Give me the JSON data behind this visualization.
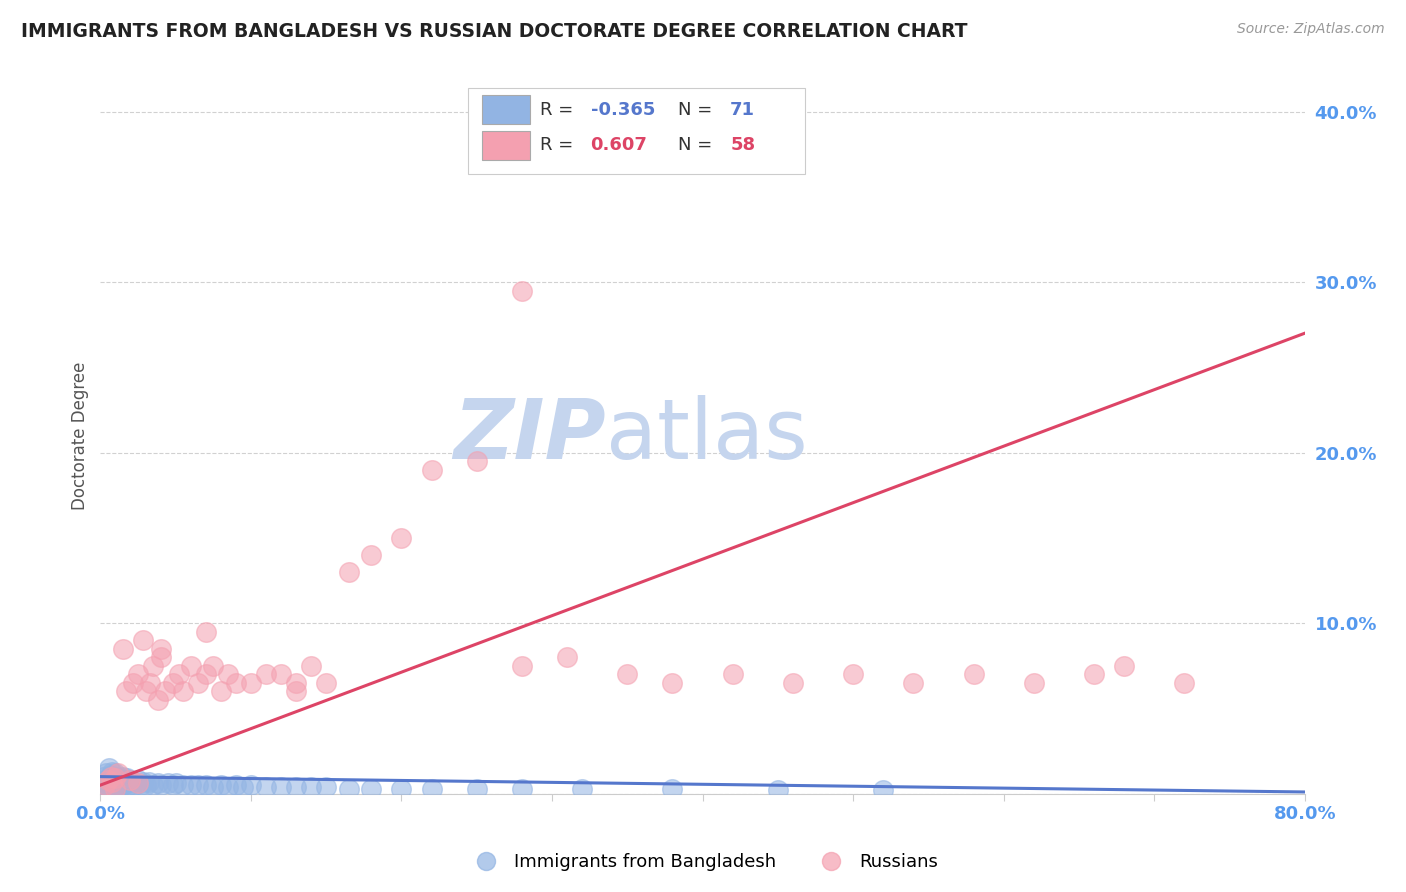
{
  "title": "IMMIGRANTS FROM BANGLADESH VS RUSSIAN DOCTORATE DEGREE CORRELATION CHART",
  "source": "Source: ZipAtlas.com",
  "ylabel": "Doctorate Degree",
  "xlim": [
    0.0,
    0.8
  ],
  "ylim": [
    0.0,
    0.42
  ],
  "yticks": [
    0.0,
    0.1,
    0.2,
    0.3,
    0.4
  ],
  "ytick_labels": [
    "",
    "10.0%",
    "20.0%",
    "30.0%",
    "40.0%"
  ],
  "xticks": [
    0.0,
    0.1,
    0.2,
    0.3,
    0.4,
    0.5,
    0.6,
    0.7,
    0.8
  ],
  "xtick_labels": [
    "0.0%",
    "",
    "",
    "",
    "",
    "",
    "",
    "",
    "80.0%"
  ],
  "legend_line1": "R = -0.365   N =  71",
  "legend_line2": "R =  0.607   N =  58",
  "blue_color": "#92B4E3",
  "pink_color": "#F4A0B0",
  "blue_edge_color": "#6688CC",
  "pink_edge_color": "#E06080",
  "blue_line_color": "#5577CC",
  "pink_line_color": "#DD4466",
  "watermark_zip": "ZIP",
  "watermark_atlas": "atlas",
  "watermark_color": "#C5D5EE",
  "title_color": "#222222",
  "source_color": "#999999",
  "axis_tick_color": "#5599EE",
  "ylabel_color": "#555555",
  "blue_scatter_x": [
    0.001,
    0.002,
    0.003,
    0.003,
    0.004,
    0.004,
    0.005,
    0.005,
    0.006,
    0.006,
    0.007,
    0.007,
    0.008,
    0.008,
    0.009,
    0.009,
    0.01,
    0.01,
    0.011,
    0.011,
    0.012,
    0.012,
    0.013,
    0.013,
    0.014,
    0.015,
    0.015,
    0.016,
    0.017,
    0.018,
    0.019,
    0.02,
    0.021,
    0.022,
    0.023,
    0.025,
    0.027,
    0.028,
    0.03,
    0.032,
    0.035,
    0.038,
    0.04,
    0.045,
    0.048,
    0.05,
    0.055,
    0.06,
    0.065,
    0.07,
    0.075,
    0.08,
    0.085,
    0.09,
    0.095,
    0.1,
    0.11,
    0.12,
    0.13,
    0.14,
    0.15,
    0.165,
    0.18,
    0.2,
    0.22,
    0.25,
    0.28,
    0.32,
    0.38,
    0.45,
    0.52
  ],
  "blue_scatter_y": [
    0.005,
    0.01,
    0.003,
    0.008,
    0.006,
    0.012,
    0.004,
    0.009,
    0.007,
    0.015,
    0.005,
    0.011,
    0.006,
    0.013,
    0.004,
    0.008,
    0.007,
    0.012,
    0.005,
    0.009,
    0.006,
    0.01,
    0.004,
    0.008,
    0.006,
    0.01,
    0.005,
    0.008,
    0.006,
    0.009,
    0.005,
    0.008,
    0.004,
    0.007,
    0.005,
    0.008,
    0.005,
    0.007,
    0.005,
    0.007,
    0.005,
    0.006,
    0.005,
    0.006,
    0.005,
    0.006,
    0.005,
    0.005,
    0.005,
    0.005,
    0.004,
    0.005,
    0.004,
    0.005,
    0.004,
    0.005,
    0.004,
    0.004,
    0.004,
    0.004,
    0.004,
    0.003,
    0.003,
    0.003,
    0.003,
    0.003,
    0.003,
    0.003,
    0.003,
    0.002,
    0.002
  ],
  "pink_scatter_x": [
    0.003,
    0.005,
    0.007,
    0.008,
    0.01,
    0.012,
    0.015,
    0.017,
    0.02,
    0.022,
    0.025,
    0.028,
    0.03,
    0.033,
    0.035,
    0.038,
    0.04,
    0.043,
    0.048,
    0.052,
    0.055,
    0.06,
    0.065,
    0.07,
    0.075,
    0.08,
    0.085,
    0.09,
    0.1,
    0.11,
    0.12,
    0.13,
    0.14,
    0.15,
    0.165,
    0.18,
    0.2,
    0.22,
    0.25,
    0.28,
    0.31,
    0.35,
    0.38,
    0.42,
    0.46,
    0.5,
    0.54,
    0.58,
    0.62,
    0.66,
    0.68,
    0.72,
    0.01,
    0.025,
    0.04,
    0.07,
    0.13,
    0.28
  ],
  "pink_scatter_y": [
    0.005,
    0.008,
    0.01,
    0.007,
    0.009,
    0.012,
    0.085,
    0.06,
    0.008,
    0.065,
    0.07,
    0.09,
    0.06,
    0.065,
    0.075,
    0.055,
    0.085,
    0.06,
    0.065,
    0.07,
    0.06,
    0.075,
    0.065,
    0.07,
    0.075,
    0.06,
    0.07,
    0.065,
    0.065,
    0.07,
    0.07,
    0.06,
    0.075,
    0.065,
    0.13,
    0.14,
    0.15,
    0.19,
    0.195,
    0.295,
    0.08,
    0.07,
    0.065,
    0.07,
    0.065,
    0.07,
    0.065,
    0.07,
    0.065,
    0.07,
    0.075,
    0.065,
    0.003,
    0.006,
    0.08,
    0.095,
    0.065,
    0.075
  ],
  "blue_line_x": [
    0.0,
    0.8
  ],
  "blue_line_y": [
    0.01,
    0.001
  ],
  "pink_line_x": [
    0.0,
    0.8
  ],
  "pink_line_y": [
    0.005,
    0.27
  ],
  "legend_blue_r": "R = ",
  "legend_blue_r_val": "-0.365",
  "legend_blue_n": "N = ",
  "legend_blue_n_val": "71",
  "legend_pink_r": "R =  ",
  "legend_pink_r_val": "0.607",
  "legend_pink_n": "N = ",
  "legend_pink_n_val": "58"
}
